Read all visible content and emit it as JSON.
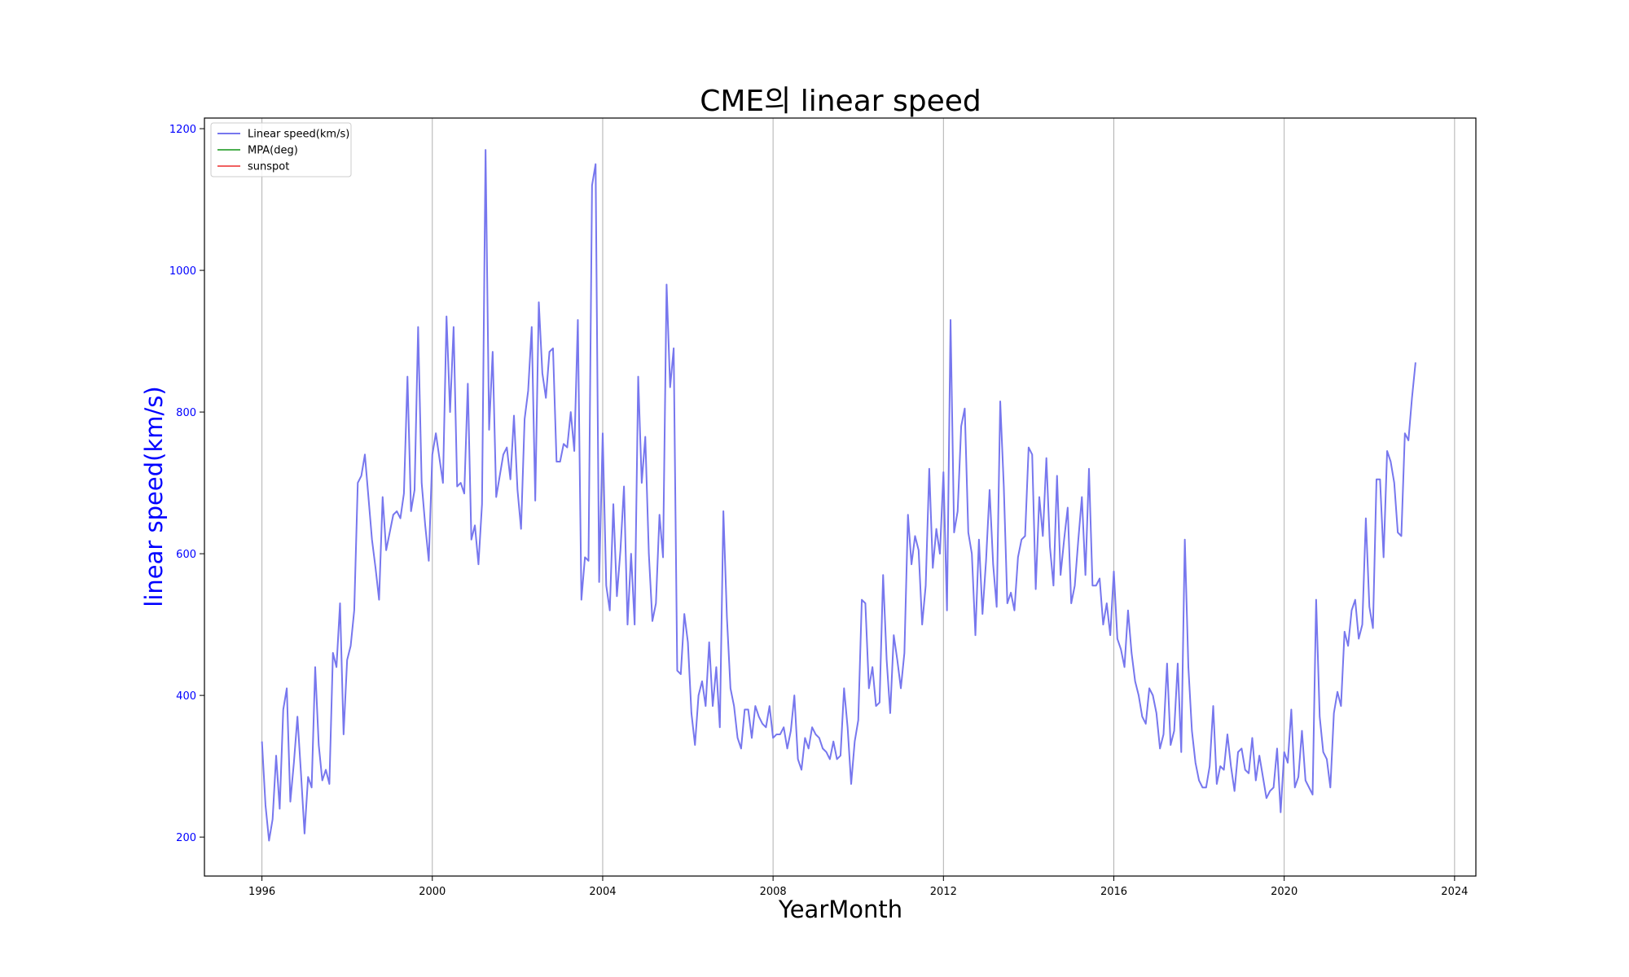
{
  "chart_data": {
    "type": "line",
    "title": "CME의 linear speed",
    "xlabel": "YearMonth",
    "ylabel": "linear speed(km/s)",
    "ylabel_color": "#0000ff",
    "x_ticks": [
      "1996",
      "2000",
      "2004",
      "2008",
      "2012",
      "2016",
      "2020",
      "2024"
    ],
    "y_ticks": [
      "200",
      "400",
      "600",
      "800",
      "1000",
      "1200"
    ],
    "xlim": [
      1994.65,
      2024.5
    ],
    "ylim": [
      145,
      1215
    ],
    "grid": "x-only",
    "legend_placement": "top-left",
    "legend": [
      {
        "label": "Linear speed(km/s)",
        "color": "#7777ee"
      },
      {
        "label": "MPA(deg)",
        "color": "#4caf50"
      },
      {
        "label": "sunspot",
        "color": "#f06060"
      }
    ],
    "series": [
      {
        "name": "Linear speed(km/s)",
        "color": "#7777ee",
        "start_year": 1996.0,
        "step_months": 1,
        "values": [
          335,
          245,
          195,
          225,
          315,
          240,
          380,
          410,
          250,
          305,
          370,
          290,
          205,
          285,
          270,
          440,
          330,
          280,
          295,
          275,
          460,
          440,
          530,
          345,
          450,
          470,
          520,
          700,
          710,
          740,
          680,
          620,
          580,
          535,
          680,
          605,
          630,
          655,
          660,
          650,
          685,
          850,
          660,
          690,
          920,
          700,
          640,
          590,
          740,
          770,
          735,
          700,
          935,
          800,
          920,
          695,
          700,
          685,
          840,
          620,
          640,
          585,
          670,
          1170,
          775,
          885,
          680,
          710,
          740,
          750,
          705,
          795,
          690,
          635,
          790,
          830,
          920,
          675,
          955,
          855,
          820,
          885,
          890,
          730,
          730,
          755,
          750,
          800,
          745,
          930,
          535,
          595,
          590,
          1120,
          1150,
          560,
          770,
          555,
          520,
          670,
          540,
          605,
          695,
          500,
          600,
          500,
          850,
          700,
          765,
          600,
          505,
          530,
          655,
          595,
          980,
          835,
          890,
          435,
          430,
          515,
          475,
          375,
          330,
          400,
          420,
          385,
          475,
          385,
          440,
          355,
          660,
          510,
          410,
          385,
          340,
          325,
          380,
          380,
          340,
          385,
          370,
          360,
          355,
          385,
          340,
          345,
          345,
          355,
          325,
          350,
          400,
          310,
          295,
          340,
          325,
          355,
          345,
          340,
          325,
          320,
          310,
          335,
          310,
          315,
          410,
          355,
          275,
          335,
          365,
          535,
          530,
          410,
          440,
          385,
          390,
          570,
          450,
          375,
          485,
          450,
          410,
          460,
          655,
          585,
          625,
          605,
          500,
          555,
          720,
          580,
          635,
          600,
          715,
          520,
          930,
          630,
          660,
          780,
          805,
          630,
          600,
          485,
          620,
          515,
          590,
          690,
          585,
          525,
          815,
          695,
          530,
          545,
          520,
          595,
          620,
          625,
          750,
          740,
          550,
          680,
          625,
          735,
          610,
          555,
          710,
          570,
          620,
          665,
          530,
          555,
          620,
          680,
          570,
          720,
          555,
          555,
          565,
          500,
          530,
          485,
          575,
          480,
          465,
          440,
          520,
          460,
          420,
          400,
          370,
          360,
          410,
          400,
          375,
          325,
          345,
          445,
          330,
          350,
          445,
          320,
          620,
          440,
          350,
          305,
          280,
          270,
          270,
          300,
          385,
          275,
          300,
          295,
          345,
          300,
          265,
          320,
          325,
          295,
          290,
          340,
          280,
          315,
          285,
          255,
          265,
          270,
          325,
          235,
          320,
          305,
          380,
          270,
          285,
          350,
          280,
          270,
          260,
          535,
          370,
          320,
          310,
          270,
          375,
          405,
          385,
          490,
          470,
          520,
          535,
          480,
          500,
          650,
          525,
          495,
          705,
          705,
          595,
          745,
          730,
          700,
          630,
          625,
          770,
          760,
          820,
          870
        ]
      }
    ]
  }
}
